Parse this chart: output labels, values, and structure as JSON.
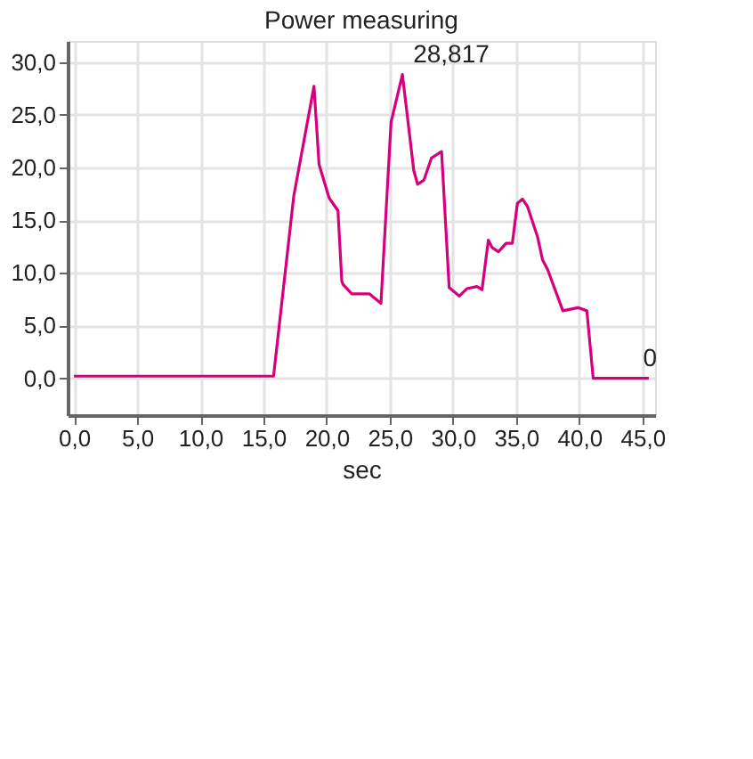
{
  "chart_data": {
    "type": "line",
    "title": "Power measuring",
    "xlabel": "sec",
    "x": [
      0,
      15.8,
      17.4,
      19.0,
      19.4,
      20.2,
      20.9,
      21.2,
      21.3,
      22.0,
      23.4,
      24.3,
      25.1,
      26.0,
      26.9,
      27.2,
      27.7,
      28.3,
      29.1,
      29.7,
      30.5,
      31.1,
      31.9,
      32.3,
      32.8,
      33.1,
      33.6,
      34.2,
      34.7,
      35.1,
      35.5,
      35.9,
      36.7,
      37.1,
      37.5,
      38.7,
      39.9,
      40.6,
      41.1,
      45.5
    ],
    "series": [
      {
        "color": "#d6007e",
        "values": [
          0.2,
          0.2,
          17.3,
          27.7,
          20.3,
          17.1,
          15.9,
          9.2,
          8.9,
          8.0,
          8.0,
          7.1,
          24.3,
          28.817,
          19.7,
          18.4,
          18.8,
          20.9,
          21.5,
          8.6,
          7.8,
          8.5,
          8.7,
          8.4,
          13.1,
          12.4,
          12.0,
          12.8,
          12.8,
          16.6,
          17.0,
          16.3,
          13.4,
          11.2,
          10.3,
          6.4,
          6.7,
          6.4,
          0,
          0
        ]
      }
    ],
    "xlim": [
      -0.5,
      46
    ],
    "ylim": [
      -3.5,
      32
    ],
    "xticks": [
      {
        "value": 0,
        "label": "0,0"
      },
      {
        "value": 5,
        "label": "5,0"
      },
      {
        "value": 10,
        "label": "10,0"
      },
      {
        "value": 15,
        "label": "15,0"
      },
      {
        "value": 20,
        "label": "20,0"
      },
      {
        "value": 25,
        "label": "25,0"
      },
      {
        "value": 30,
        "label": "30,0"
      },
      {
        "value": 35,
        "label": "35,0"
      },
      {
        "value": 40,
        "label": "40,0"
      },
      {
        "value": 45,
        "label": "45,0"
      }
    ],
    "yticks": [
      {
        "value": 0,
        "label": "0,0"
      },
      {
        "value": 5,
        "label": "5,0"
      },
      {
        "value": 10,
        "label": "10,0"
      },
      {
        "value": 15,
        "label": "15,0"
      },
      {
        "value": 20,
        "label": "20,0"
      },
      {
        "value": 25,
        "label": "25,0"
      },
      {
        "value": 30,
        "label": "30,0"
      }
    ],
    "annotations": [
      {
        "text": "28,817",
        "x": 26.0,
        "y": 28.817
      },
      {
        "text": "0",
        "x": 44.2,
        "y": 0
      }
    ],
    "grid": true,
    "marker": "none",
    "line_style": "solid"
  }
}
